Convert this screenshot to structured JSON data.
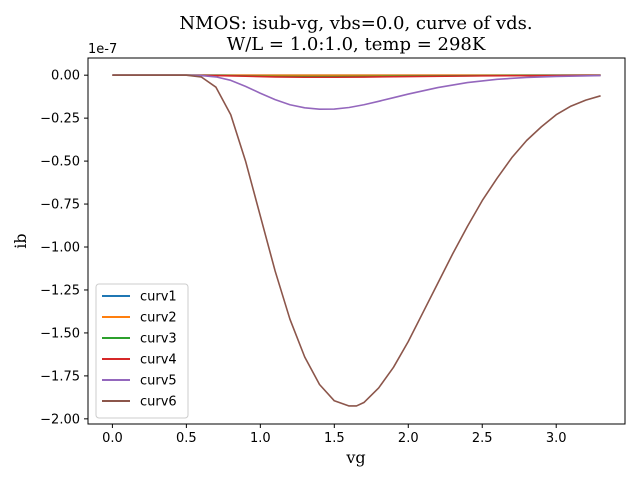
{
  "chart_data": {
    "type": "line",
    "title_line1": "NMOS: isub-vg, vbs=0.0, curve of vds.",
    "title_line2": "W/L = 1.0:1.0, temp = 298K",
    "xlabel": "vg",
    "ylabel": "ib",
    "y_offset_label": "1e-7",
    "xlim": [
      -0.165,
      3.465
    ],
    "ylim": [
      -2.03,
      0.1
    ],
    "x_ticks": [
      0.0,
      0.5,
      1.0,
      1.5,
      2.0,
      2.5,
      3.0
    ],
    "x_tick_labels": [
      "0.0",
      "0.5",
      "1.0",
      "1.5",
      "2.0",
      "2.5",
      "3.0"
    ],
    "y_ticks": [
      0.0,
      -0.25,
      -0.5,
      -0.75,
      -1.0,
      -1.25,
      -1.5,
      -1.75,
      -2.0
    ],
    "y_tick_labels": [
      "0.00",
      "−0.25",
      "−0.50",
      "−0.75",
      "−1.00",
      "−1.25",
      "−1.50",
      "−1.75",
      "−2.00"
    ],
    "legend_position": "lower-left",
    "series": [
      {
        "name": "curv1",
        "color": "#1f77b4",
        "x": [
          0.0,
          0.5,
          1.0,
          1.5,
          2.0,
          2.5,
          3.0,
          3.3
        ],
        "y": [
          0,
          0,
          0,
          0,
          0,
          0,
          0,
          0
        ]
      },
      {
        "name": "curv2",
        "color": "#ff7f0e",
        "x": [
          0.0,
          0.5,
          1.0,
          1.5,
          2.0,
          2.5,
          3.0,
          3.3
        ],
        "y": [
          0,
          0,
          0,
          0,
          0,
          0,
          0,
          0
        ]
      },
      {
        "name": "curv3",
        "color": "#2ca02c",
        "x": [
          0.0,
          0.5,
          0.7,
          0.9,
          1.1,
          1.3,
          1.5,
          1.7,
          2.0,
          2.5,
          3.0,
          3.3
        ],
        "y": [
          0,
          0,
          -0.001,
          -0.004,
          -0.007,
          -0.008,
          -0.008,
          -0.007,
          -0.005,
          -0.003,
          -0.001,
          0
        ]
      },
      {
        "name": "curv4",
        "color": "#d62728",
        "x": [
          0.0,
          0.5,
          0.7,
          0.9,
          1.1,
          1.3,
          1.5,
          1.7,
          2.0,
          2.5,
          3.0,
          3.3
        ],
        "y": [
          0,
          0,
          -0.002,
          -0.006,
          -0.01,
          -0.012,
          -0.012,
          -0.011,
          -0.008,
          -0.004,
          -0.002,
          -0.001
        ]
      },
      {
        "name": "curv5",
        "color": "#9467bd",
        "x": [
          0.0,
          0.5,
          0.6,
          0.7,
          0.8,
          0.9,
          1.0,
          1.1,
          1.2,
          1.3,
          1.4,
          1.5,
          1.6,
          1.7,
          1.8,
          1.9,
          2.0,
          2.2,
          2.4,
          2.6,
          2.8,
          3.0,
          3.3
        ],
        "y": [
          0,
          0,
          -0.002,
          -0.01,
          -0.03,
          -0.065,
          -0.105,
          -0.142,
          -0.172,
          -0.19,
          -0.198,
          -0.197,
          -0.188,
          -0.172,
          -0.152,
          -0.131,
          -0.11,
          -0.072,
          -0.043,
          -0.024,
          -0.013,
          -0.007,
          -0.002
        ]
      },
      {
        "name": "curv6",
        "color": "#8c564b",
        "x": [
          0.0,
          0.5,
          0.6,
          0.7,
          0.8,
          0.9,
          1.0,
          1.1,
          1.2,
          1.3,
          1.4,
          1.5,
          1.6,
          1.65,
          1.7,
          1.8,
          1.9,
          2.0,
          2.1,
          2.2,
          2.3,
          2.4,
          2.5,
          2.6,
          2.7,
          2.8,
          2.9,
          3.0,
          3.1,
          3.2,
          3.3
        ],
        "y": [
          0,
          0,
          -0.01,
          -0.07,
          -0.23,
          -0.5,
          -0.82,
          -1.14,
          -1.42,
          -1.64,
          -1.8,
          -1.895,
          -1.925,
          -1.925,
          -1.905,
          -1.82,
          -1.7,
          -1.55,
          -1.38,
          -1.21,
          -1.04,
          -0.88,
          -0.73,
          -0.6,
          -0.48,
          -0.38,
          -0.3,
          -0.23,
          -0.18,
          -0.145,
          -0.12
        ]
      }
    ]
  }
}
